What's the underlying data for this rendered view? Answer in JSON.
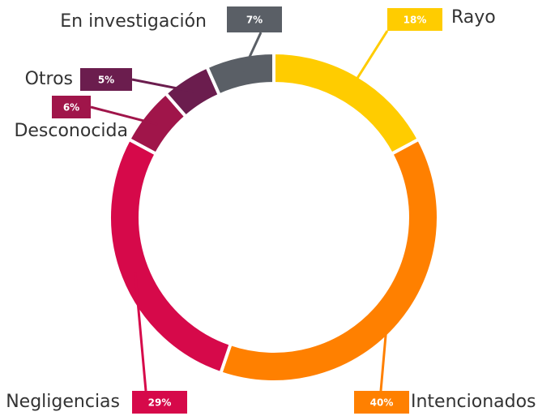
{
  "chart_data": {
    "type": "pie",
    "categories": [
      "Rayo",
      "Intencionados",
      "Negligencias",
      "Desconocida",
      "Otros",
      "En investigación"
    ],
    "values": [
      18,
      40,
      29,
      6,
      5,
      7
    ],
    "value_labels": [
      "18%",
      "40%",
      "29%",
      "6%",
      "5%",
      "7%"
    ],
    "colors": [
      "#ffcc00",
      "#ff8000",
      "#d6094a",
      "#a0154a",
      "#6b1d4e",
      "#5a5f66"
    ]
  }
}
